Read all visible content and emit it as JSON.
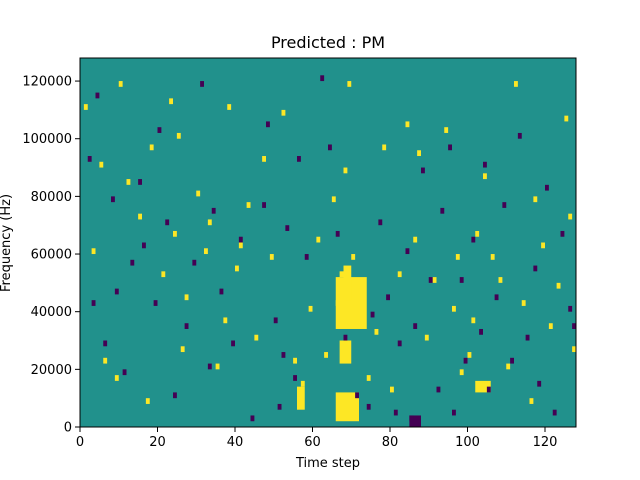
{
  "chart_data": {
    "type": "heatmap",
    "title": "Predicted : PM",
    "xlabel": "Time step",
    "ylabel": "Frequency (Hz)",
    "xlim": [
      0,
      128
    ],
    "ylim": [
      0,
      128000
    ],
    "x_ticks": [
      0,
      20,
      40,
      60,
      80,
      100,
      120
    ],
    "x_tick_labels": [
      "0",
      "20",
      "40",
      "60",
      "80",
      "100",
      "120"
    ],
    "y_ticks": [
      0,
      20000,
      40000,
      60000,
      80000,
      100000,
      120000
    ],
    "y_tick_labels": [
      "0",
      "20000",
      "40000",
      "60000",
      "80000",
      "100000",
      "120000"
    ],
    "grid": false,
    "legend": "none",
    "colors": {
      "background": "#21918c",
      "high": "#fde725",
      "low": "#440154"
    },
    "bin_width_hz": 2000,
    "high_cells": [
      [
        1,
        110000
      ],
      [
        3,
        60000
      ],
      [
        5,
        90000
      ],
      [
        6,
        22000
      ],
      [
        9,
        16000
      ],
      [
        10,
        118000
      ],
      [
        12,
        84000
      ],
      [
        15,
        72000
      ],
      [
        17,
        8000
      ],
      [
        18,
        96000
      ],
      [
        21,
        52000
      ],
      [
        23,
        112000
      ],
      [
        24,
        66000
      ],
      [
        25,
        100000
      ],
      [
        26,
        26000
      ],
      [
        27,
        44000
      ],
      [
        30,
        80000
      ],
      [
        32,
        60000
      ],
      [
        33,
        70000
      ],
      [
        35,
        20000
      ],
      [
        37,
        36000
      ],
      [
        38,
        110000
      ],
      [
        40,
        54000
      ],
      [
        41,
        62000
      ],
      [
        43,
        76000
      ],
      [
        45,
        30000
      ],
      [
        47,
        92000
      ],
      [
        49,
        58000
      ],
      [
        52,
        108000
      ],
      [
        55,
        22000
      ],
      [
        57,
        14000
      ],
      [
        59,
        40000
      ],
      [
        61,
        64000
      ],
      [
        63,
        24000
      ],
      [
        65,
        78000
      ],
      [
        66,
        42000
      ],
      [
        67,
        52000
      ],
      [
        68,
        88000
      ],
      [
        69,
        118000
      ],
      [
        70,
        58000
      ],
      [
        72,
        46000
      ],
      [
        74,
        16000
      ],
      [
        76,
        32000
      ],
      [
        78,
        96000
      ],
      [
        80,
        12000
      ],
      [
        82,
        52000
      ],
      [
        84,
        104000
      ],
      [
        86,
        64000
      ],
      [
        87,
        94000
      ],
      [
        89,
        30000
      ],
      [
        91,
        50000
      ],
      [
        94,
        102000
      ],
      [
        96,
        40000
      ],
      [
        97,
        58000
      ],
      [
        98,
        18000
      ],
      [
        100,
        24000
      ],
      [
        101,
        36000
      ],
      [
        102,
        66000
      ],
      [
        104,
        86000
      ],
      [
        106,
        58000
      ],
      [
        108,
        50000
      ],
      [
        110,
        20000
      ],
      [
        112,
        118000
      ],
      [
        114,
        42000
      ],
      [
        116,
        8000
      ],
      [
        117,
        78000
      ],
      [
        119,
        62000
      ],
      [
        121,
        34000
      ],
      [
        123,
        48000
      ],
      [
        125,
        106000
      ],
      [
        126,
        72000
      ],
      [
        127,
        26000
      ]
    ],
    "low_cells": [
      [
        2,
        92000
      ],
      [
        3,
        42000
      ],
      [
        4,
        114000
      ],
      [
        6,
        28000
      ],
      [
        8,
        78000
      ],
      [
        9,
        46000
      ],
      [
        11,
        18000
      ],
      [
        13,
        56000
      ],
      [
        15,
        84000
      ],
      [
        16,
        62000
      ],
      [
        19,
        42000
      ],
      [
        20,
        102000
      ],
      [
        22,
        70000
      ],
      [
        24,
        10000
      ],
      [
        27,
        34000
      ],
      [
        29,
        56000
      ],
      [
        31,
        118000
      ],
      [
        33,
        20000
      ],
      [
        34,
        74000
      ],
      [
        36,
        46000
      ],
      [
        39,
        28000
      ],
      [
        41,
        64000
      ],
      [
        44,
        2000
      ],
      [
        47,
        76000
      ],
      [
        48,
        104000
      ],
      [
        50,
        36000
      ],
      [
        51,
        6000
      ],
      [
        52,
        24000
      ],
      [
        53,
        68000
      ],
      [
        55,
        16000
      ],
      [
        56,
        92000
      ],
      [
        58,
        58000
      ],
      [
        62,
        120000
      ],
      [
        64,
        96000
      ],
      [
        66,
        66000
      ],
      [
        68,
        30000
      ],
      [
        71,
        10000
      ],
      [
        74,
        6000
      ],
      [
        75,
        38000
      ],
      [
        77,
        70000
      ],
      [
        79,
        44000
      ],
      [
        81,
        4000
      ],
      [
        82,
        28000
      ],
      [
        84,
        60000
      ],
      [
        85,
        2000
      ],
      [
        86,
        34000
      ],
      [
        88,
        88000
      ],
      [
        90,
        50000
      ],
      [
        92,
        12000
      ],
      [
        93,
        74000
      ],
      [
        95,
        96000
      ],
      [
        96,
        4000
      ],
      [
        98,
        50000
      ],
      [
        99,
        22000
      ],
      [
        101,
        64000
      ],
      [
        103,
        32000
      ],
      [
        104,
        90000
      ],
      [
        105,
        12000
      ],
      [
        107,
        44000
      ],
      [
        109,
        76000
      ],
      [
        111,
        22000
      ],
      [
        113,
        100000
      ],
      [
        115,
        30000
      ],
      [
        117,
        54000
      ],
      [
        118,
        14000
      ],
      [
        120,
        82000
      ],
      [
        122,
        4000
      ],
      [
        124,
        66000
      ],
      [
        126,
        40000
      ],
      [
        127,
        34000
      ]
    ],
    "high_blocks": [
      [
        66,
        72,
        2000,
        12000
      ],
      [
        66,
        74,
        34000,
        52000
      ],
      [
        67,
        70,
        22000,
        30000
      ],
      [
        68,
        70,
        44000,
        56000
      ],
      [
        102,
        106,
        12000,
        16000
      ],
      [
        56,
        58,
        6000,
        14000
      ]
    ],
    "low_blocks": [
      [
        85,
        88,
        0,
        4000
      ]
    ]
  }
}
